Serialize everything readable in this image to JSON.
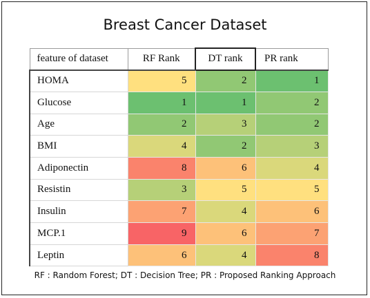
{
  "chart_data": {
    "type": "table",
    "title": "Breast Cancer Dataset",
    "columns": [
      "feature of dataset",
      "RF Rank",
      "DT rank",
      "PR rank"
    ],
    "rows": [
      {
        "feature": "HOMA",
        "values": [
          5,
          2,
          1
        ]
      },
      {
        "feature": "Glucose",
        "values": [
          1,
          1,
          2
        ]
      },
      {
        "feature": "Age",
        "values": [
          2,
          3,
          2
        ]
      },
      {
        "feature": "BMI",
        "values": [
          4,
          2,
          3
        ]
      },
      {
        "feature": "Adiponectin",
        "values": [
          8,
          6,
          4
        ]
      },
      {
        "feature": "Resistin",
        "values": [
          3,
          5,
          5
        ]
      },
      {
        "feature": "Insulin",
        "values": [
          7,
          4,
          6
        ]
      },
      {
        "feature": "MCP.1",
        "values": [
          9,
          6,
          7
        ]
      },
      {
        "feature": "Leptin",
        "values": [
          6,
          4,
          8
        ]
      }
    ],
    "caption": "RF : Random Forest; DT : Decision Tree; PR : Proposed Ranking Approach",
    "color_scale": {
      "low": "#6cc070",
      "mid": "#ffe07f",
      "high": "#f86466"
    }
  }
}
